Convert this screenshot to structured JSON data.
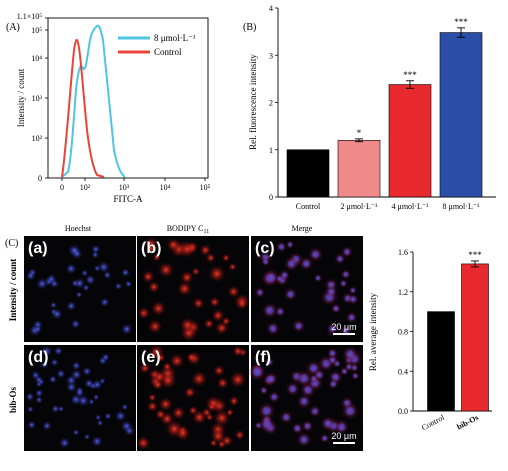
{
  "chart_data": [
    {
      "type": "line",
      "panel": "(A)",
      "xlabel": "FITC-A",
      "ylabel": "Intensity / count",
      "x_ticks": [
        "0",
        "10²",
        "10³",
        "10⁴",
        "10⁵"
      ],
      "y_ticks": [
        "0",
        "10²",
        "10³",
        "10⁴",
        "10⁵",
        "1.1×10⁵"
      ],
      "ylim_label": "1.1×10⁵",
      "legend_position": "top-right",
      "series": [
        {
          "name": "8 μmol·L⁻¹",
          "color": "#4ec6e0",
          "x": [
            30,
            60,
            90,
            130,
            170,
            210,
            230,
            260,
            300,
            360,
            420,
            500,
            600
          ],
          "y": [
            0,
            2000,
            8000,
            55000,
            75000,
            70000,
            110000,
            80000,
            100000,
            55000,
            20000,
            3000,
            0
          ]
        },
        {
          "name": "Control",
          "color": "#e8443a",
          "x": [
            15,
            25,
            35,
            45,
            55,
            70,
            90,
            120,
            160,
            200
          ],
          "y": [
            0,
            8000,
            60000,
            100000,
            80000,
            60000,
            30000,
            8000,
            1500,
            0
          ]
        }
      ]
    },
    {
      "type": "bar",
      "panel": "(B)",
      "ylabel": "Rel. fluorescence intensity",
      "ylim": [
        0,
        4
      ],
      "y_ticks": [
        "0",
        "1",
        "2",
        "3",
        "4"
      ],
      "categories": [
        "Control",
        "2 μmol·L⁻¹",
        "4 μmol·L⁻¹",
        "8 μmol·L⁻¹"
      ],
      "values": [
        1.0,
        1.2,
        2.38,
        3.48
      ],
      "errors": [
        0,
        0.03,
        0.08,
        0.1
      ],
      "colors": [
        "#000000",
        "#f08a8a",
        "#e8292e",
        "#2b4ea8"
      ],
      "significance": [
        "",
        "*",
        "***",
        "***"
      ]
    },
    {
      "type": "bar",
      "panel": "(C)",
      "ylabel": "Rel. average intensity",
      "ylim": [
        0,
        1.6
      ],
      "y_ticks": [
        "0.0",
        "0.4",
        "0.8",
        "1.2",
        "1.6"
      ],
      "categories": [
        "Control",
        "bib-Os"
      ],
      "values": [
        1.0,
        1.48
      ],
      "errors": [
        0,
        0.03
      ],
      "colors": [
        "#000000",
        "#e8292e"
      ],
      "significance": [
        "",
        "***"
      ]
    }
  ],
  "micrographs": {
    "panel": "(C)",
    "columns": [
      "Hoechst",
      "BODIPY C",
      "Merge"
    ],
    "column_subscript": "11",
    "row_labels": [
      "Intensity / count",
      "bib-Os"
    ],
    "tiles": [
      "(a)",
      "(b)",
      "(c)",
      "(d)",
      "(e)",
      "(f)"
    ],
    "scale_bar": "20 μm"
  }
}
